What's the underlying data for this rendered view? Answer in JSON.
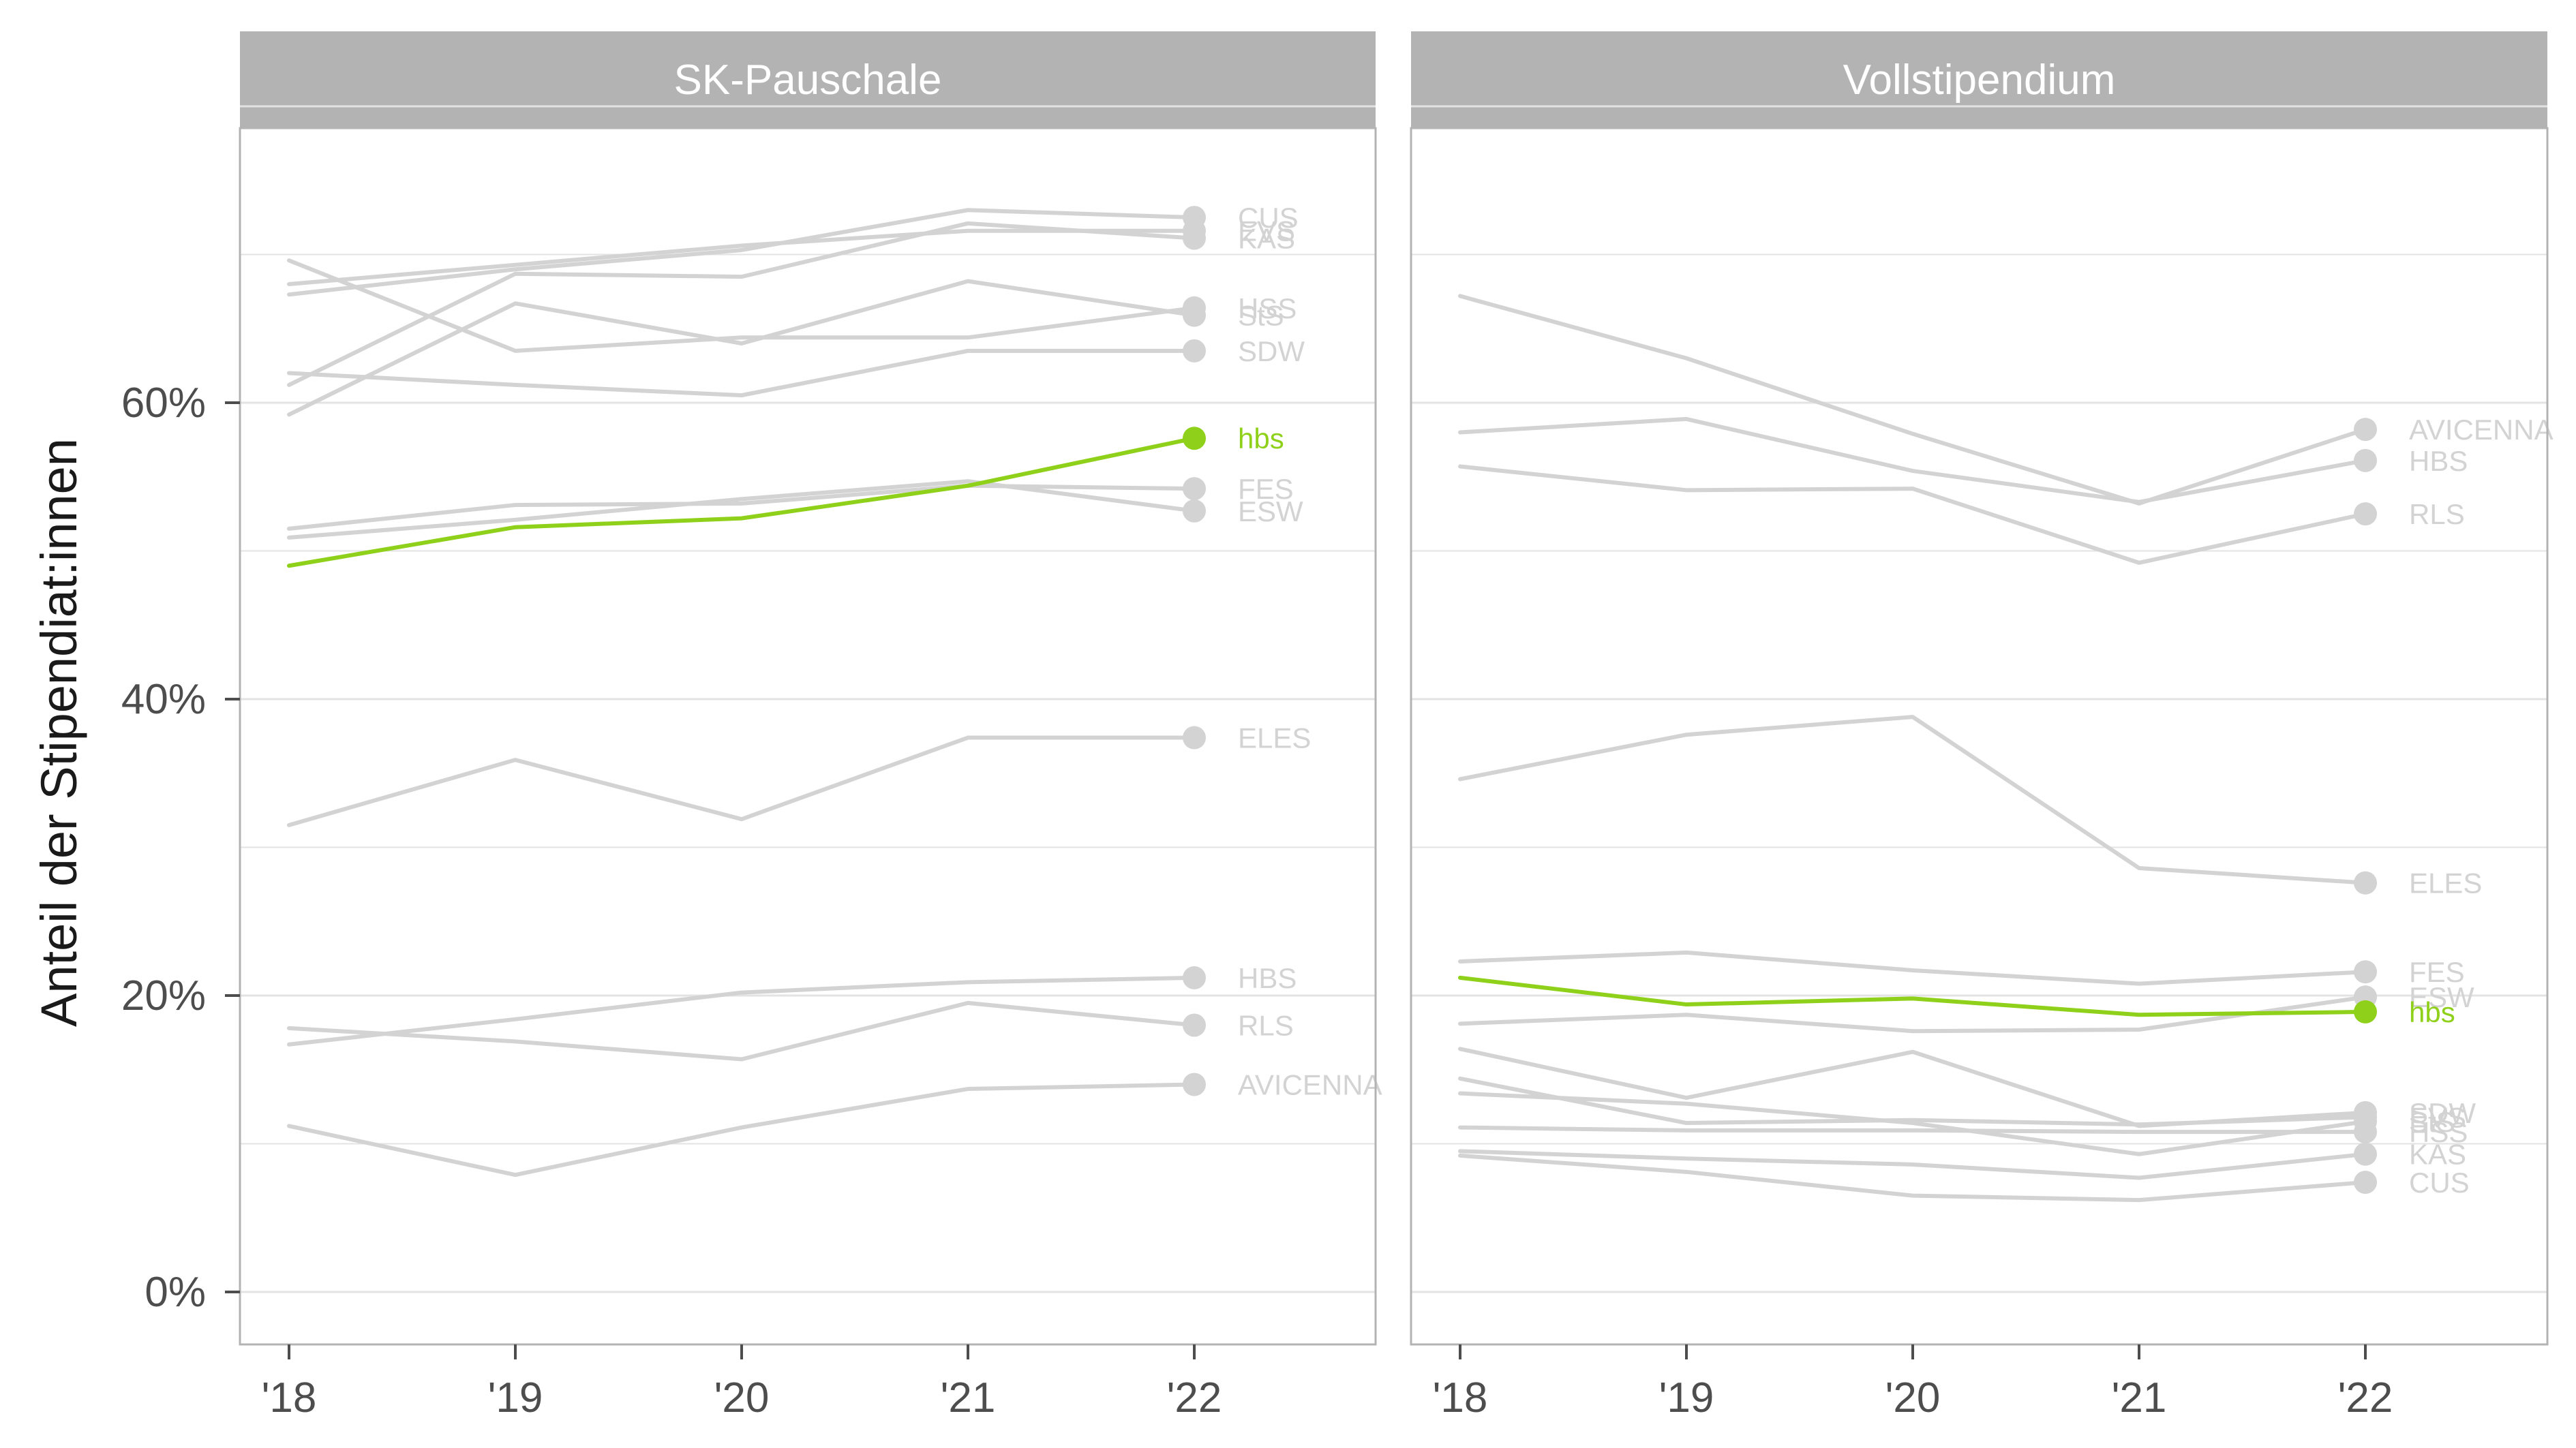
{
  "chart_data": {
    "type": "line",
    "ylabel": "Anteil der Stipendiat:innen",
    "x_categories": [
      "'18",
      "'19",
      "'20",
      "'21",
      "'22"
    ],
    "y_ticks": [
      0,
      20,
      40,
      60
    ],
    "y_tick_labels": [
      "0%",
      "20%",
      "40%",
      "60%"
    ],
    "ylim": [
      -3.5,
      85
    ],
    "grid": true,
    "colors": {
      "default": "#d3d3d3",
      "highlight": "#8fd11a",
      "strip": "#b3b3b3",
      "panel_border": "#b3b3b3",
      "grid": "#e3e3e3"
    },
    "panels": [
      {
        "title": "SK-Pauschale",
        "series": [
          {
            "name": "CUS",
            "values": [
              67.3,
              69.0,
              70.3,
              73.0,
              72.5
            ],
            "highlight": false
          },
          {
            "name": "EVS",
            "values": [
              68.0,
              69.3,
              70.6,
              71.6,
              71.6
            ],
            "highlight": false
          },
          {
            "name": "KAS",
            "values": [
              61.2,
              68.7,
              68.5,
              72.1,
              71.1
            ],
            "highlight": false
          },
          {
            "name": "HSS",
            "values": [
              69.6,
              63.5,
              64.4,
              64.4,
              66.4
            ],
            "highlight": false
          },
          {
            "name": "StS",
            "values": [
              59.2,
              66.7,
              64.0,
              68.2,
              65.9
            ],
            "highlight": false
          },
          {
            "name": "SDW",
            "values": [
              62.0,
              61.2,
              60.5,
              63.5,
              63.5
            ],
            "highlight": false
          },
          {
            "name": "hbs",
            "values": [
              49.0,
              51.6,
              52.2,
              54.4,
              57.6
            ],
            "highlight": true
          },
          {
            "name": "FES",
            "values": [
              51.5,
              53.1,
              53.2,
              54.4,
              54.2
            ],
            "highlight": false
          },
          {
            "name": "ESW",
            "values": [
              50.9,
              52.1,
              53.5,
              54.7,
              52.7
            ],
            "highlight": false
          },
          {
            "name": "ELES",
            "values": [
              31.5,
              35.9,
              31.9,
              37.4,
              37.4
            ],
            "highlight": false
          },
          {
            "name": "HBS",
            "values": [
              16.7,
              18.4,
              20.2,
              20.9,
              21.2
            ],
            "highlight": false
          },
          {
            "name": "RLS",
            "values": [
              17.8,
              16.9,
              15.7,
              19.5,
              18.0
            ],
            "highlight": false
          },
          {
            "name": "AVICENNA",
            "values": [
              11.2,
              7.9,
              11.1,
              13.7,
              14.0
            ],
            "highlight": false
          }
        ]
      },
      {
        "title": "Vollstipendium",
        "series": [
          {
            "name": "AVICENNA",
            "values": [
              67.2,
              63.0,
              57.9,
              53.2,
              58.2
            ],
            "highlight": false
          },
          {
            "name": "HBS",
            "values": [
              58.0,
              58.9,
              55.4,
              53.3,
              56.1
            ],
            "highlight": false
          },
          {
            "name": "RLS",
            "values": [
              55.7,
              54.1,
              54.2,
              49.2,
              52.5
            ],
            "highlight": false
          },
          {
            "name": "ELES",
            "values": [
              34.6,
              37.6,
              38.8,
              28.6,
              27.6
            ],
            "highlight": false
          },
          {
            "name": "FES",
            "values": [
              22.3,
              22.9,
              21.7,
              20.8,
              21.6
            ],
            "highlight": false
          },
          {
            "name": "ESW",
            "values": [
              18.1,
              18.7,
              17.6,
              17.7,
              19.9
            ],
            "highlight": false
          },
          {
            "name": "hbs",
            "values": [
              21.2,
              19.4,
              19.8,
              18.7,
              18.9
            ],
            "highlight": true
          },
          {
            "name": "SDW",
            "values": [
              16.4,
              13.1,
              16.2,
              11.2,
              12.1
            ],
            "highlight": false
          },
          {
            "name": "EVS",
            "values": [
              14.4,
              11.4,
              11.6,
              11.3,
              11.8
            ],
            "highlight": false
          },
          {
            "name": "StS",
            "values": [
              13.4,
              12.7,
              11.4,
              9.3,
              11.5
            ],
            "highlight": false
          },
          {
            "name": "HSS",
            "values": [
              11.1,
              10.9,
              10.9,
              10.8,
              10.8
            ],
            "highlight": false
          },
          {
            "name": "KAS",
            "values": [
              9.5,
              9.0,
              8.6,
              7.7,
              9.3
            ],
            "highlight": false
          },
          {
            "name": "CUS",
            "values": [
              9.2,
              8.1,
              6.5,
              6.2,
              7.4
            ],
            "highlight": false
          }
        ]
      }
    ]
  }
}
